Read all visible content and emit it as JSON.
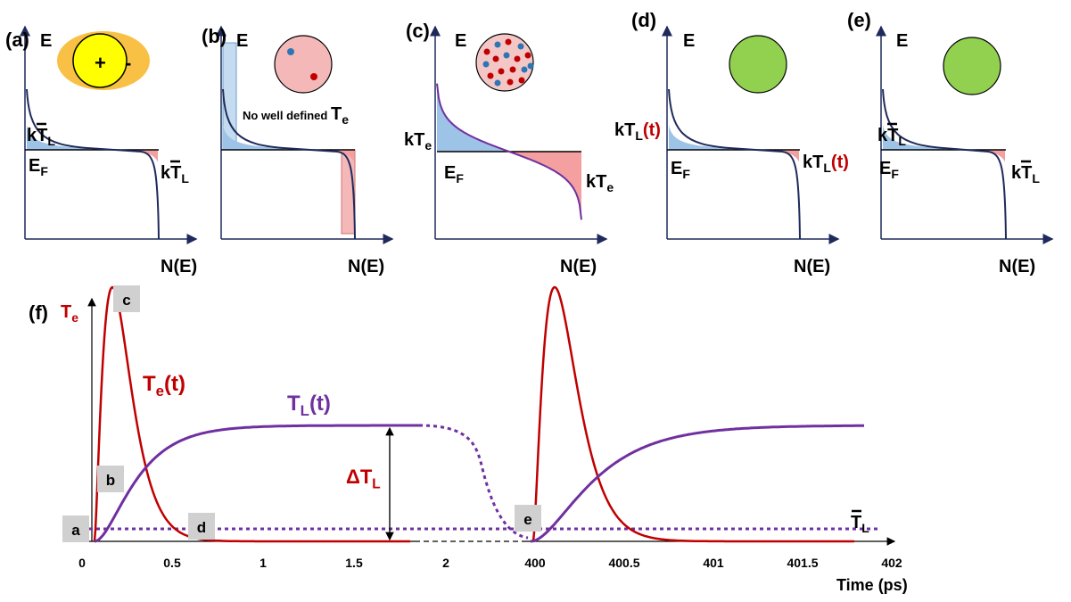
{
  "panels": [
    {
      "label": "(a)",
      "axis_y": "E",
      "axis_x": "N(E)",
      "charges": [
        "+",
        "-"
      ],
      "top": {
        "main": "kT",
        "sub": "L"
      },
      "fermi": {
        "main": "E",
        "sub": "F"
      },
      "right": {
        "main": "kT",
        "sub": "L"
      }
    },
    {
      "label": "(b)",
      "axis_y": "E",
      "axis_x": "N(E)",
      "note": {
        "text": "No well defined ",
        "main": "T",
        "sub": "e"
      }
    },
    {
      "label": "(c)",
      "axis_y": "E",
      "axis_x": "N(E)",
      "top": {
        "main": "kT",
        "sub": "e"
      },
      "fermi": {
        "main": "E",
        "sub": "F"
      },
      "right": {
        "main": "kT",
        "sub": "e"
      }
    },
    {
      "label": "(d)",
      "axis_y": "E",
      "axis_x": "N(E)",
      "top": {
        "main": "kT",
        "sub": "L",
        "suffix": "(t)"
      },
      "fermi": {
        "main": "E",
        "sub": "F"
      },
      "right": {
        "main": "kT",
        "sub": "L",
        "suffix": "(t)"
      }
    },
    {
      "label": "(e)",
      "axis_y": "E",
      "axis_x": "N(E)",
      "top": {
        "main": "kT",
        "sub": "L"
      },
      "fermi": {
        "main": "E",
        "sub": "F"
      },
      "right": {
        "main": "kT",
        "sub": "L"
      }
    }
  ],
  "time_panel": {
    "label": "(f)",
    "y_axis": {
      "main": "T",
      "sub": "e"
    },
    "x_axis": "Time (ps)",
    "ticks": [
      0,
      0.5,
      1,
      1.5,
      2,
      400,
      400.5,
      401,
      401.5,
      402
    ],
    "te_label": {
      "main": "T",
      "sub": "e",
      "suffix": "(t)"
    },
    "tl_label": {
      "main": "T",
      "sub": "L",
      "suffix": "(t)"
    },
    "delta_label": {
      "main": "ΔT",
      "sub": "L"
    },
    "mean_label": {
      "main": "T",
      "sub": "L"
    },
    "markers": [
      "a",
      "b",
      "c",
      "d",
      "e"
    ]
  }
}
